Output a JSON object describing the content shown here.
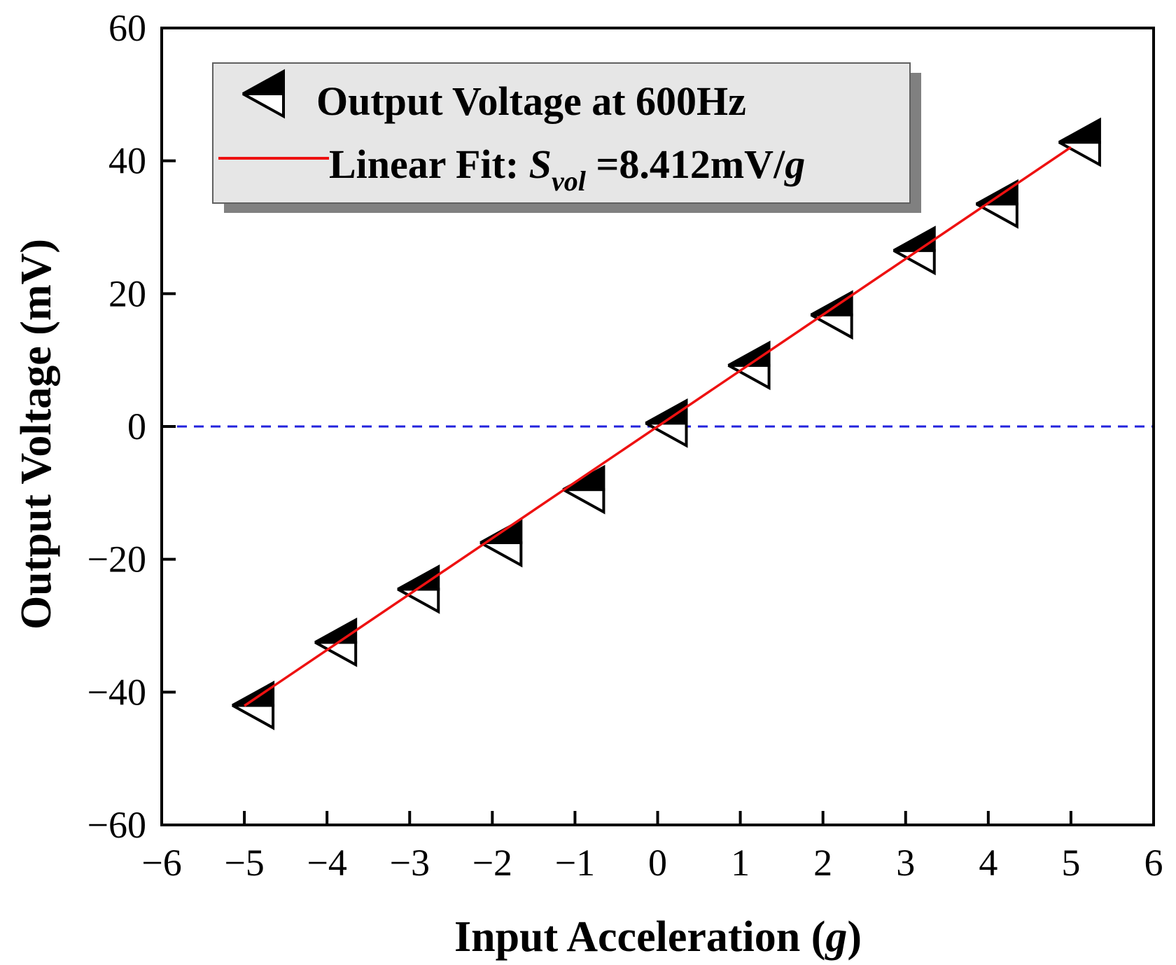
{
  "chart_data": {
    "type": "scatter",
    "title": "",
    "xlabel": "Input Acceleration",
    "xlabel_unit": "g",
    "ylabel": "Output Voltage (mV)",
    "xlim": [
      -6,
      6
    ],
    "ylim": [
      -60,
      60
    ],
    "xticks": [
      -6,
      -5,
      -4,
      -3,
      -2,
      -1,
      0,
      1,
      2,
      3,
      4,
      5,
      6
    ],
    "yticks": [
      -60,
      -40,
      -20,
      0,
      20,
      40,
      60
    ],
    "xtick_labels": [
      "−6",
      "−5",
      "−4",
      "−3",
      "−2",
      "−1",
      "0",
      "1",
      "2",
      "3",
      "4",
      "5",
      "6"
    ],
    "ytick_labels": [
      "−60",
      "−40",
      "−20",
      "0",
      "20",
      "40",
      "60"
    ],
    "grid": false,
    "series": [
      {
        "name": "Output Voltage at 600Hz",
        "kind": "scatter",
        "marker": "left-triangle-half-filled",
        "color": "#000000",
        "x": [
          -5,
          -4,
          -3,
          -2,
          -1,
          0,
          1,
          2,
          3,
          4,
          5
        ],
        "y": [
          -42,
          -32.5,
          -24.5,
          -17.5,
          -9.5,
          0.5,
          9.2,
          16.8,
          26.5,
          33.5,
          42.8
        ]
      },
      {
        "name": "Linear Fit",
        "kind": "line",
        "color": "#ee1111",
        "x": [
          -5,
          5
        ],
        "y": [
          -42.06,
          42.06
        ]
      },
      {
        "name": "zero reference",
        "kind": "dashed-line",
        "color": "#2222dd",
        "x": [
          -6,
          6
        ],
        "y": [
          0,
          0
        ]
      }
    ],
    "legend": {
      "position": "top-left",
      "entries": [
        {
          "label": "Output Voltage at 600Hz"
        },
        {
          "label_prefix": "Linear Fit: ",
          "symbol": "S",
          "subscript": "vol",
          "label_value": " =8.412mV/",
          "label_unit": "g"
        }
      ]
    }
  }
}
